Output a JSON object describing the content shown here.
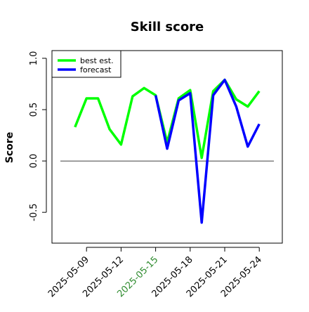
{
  "chart_data": {
    "type": "line",
    "title": "Skill score",
    "y_label": "Score",
    "x": [
      "2025-05-08",
      "2025-05-09",
      "2025-05-10",
      "2025-05-11",
      "2025-05-12",
      "2025-05-13",
      "2025-05-14",
      "2025-05-15",
      "2025-05-16",
      "2025-05-17",
      "2025-05-18",
      "2025-05-19",
      "2025-05-20",
      "2025-05-21",
      "2025-05-22",
      "2025-05-23",
      "2025-05-24"
    ],
    "series": [
      {
        "name": "best est.",
        "color": "#00ff00",
        "values": [
          0.33,
          0.61,
          0.61,
          0.31,
          0.16,
          0.63,
          0.71,
          0.64,
          0.18,
          0.61,
          0.69,
          0.03,
          0.68,
          0.79,
          0.6,
          0.53,
          0.68
        ]
      },
      {
        "name": "forecast",
        "color": "#0000ff",
        "values": [
          null,
          null,
          null,
          null,
          null,
          null,
          null,
          0.64,
          0.12,
          0.59,
          0.66,
          -0.6,
          0.64,
          0.79,
          0.53,
          0.14,
          0.36
        ]
      }
    ],
    "xlim": [
      "2025-05-06",
      "2025-05-26"
    ],
    "xticks": [
      "2025-05-09",
      "2025-05-12",
      "2025-05-15",
      "2025-05-18",
      "2025-05-21",
      "2025-05-24"
    ],
    "xtick_colors": [
      "#000000",
      "#000000",
      "#2e8b2e",
      "#000000",
      "#000000",
      "#000000"
    ],
    "ylim": [
      -0.8,
      1.075
    ],
    "yticks": [
      {
        "value": -0.5,
        "label": "-0.5"
      },
      {
        "value": 0,
        "label": "0.0"
      },
      {
        "value": 0.5,
        "label": "0.5"
      },
      {
        "value": 1,
        "label": "1.0"
      }
    ],
    "hline": 0,
    "legend": "top-left"
  }
}
